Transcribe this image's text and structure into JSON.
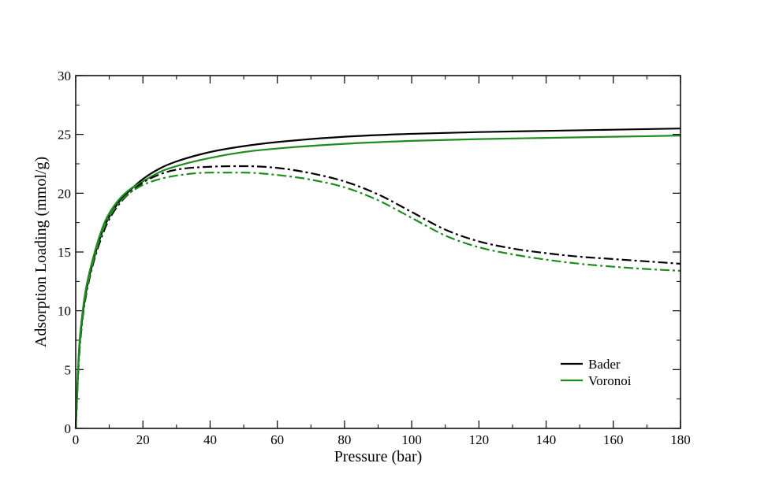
{
  "chart_data": {
    "type": "line",
    "title": "",
    "xlabel": "Pressure (bar)",
    "ylabel": "Adsorption Loading (mmol/g)",
    "xlim": [
      0,
      180
    ],
    "ylim": [
      0,
      30
    ],
    "xticks": [
      0,
      20,
      40,
      60,
      80,
      100,
      120,
      140,
      160,
      180
    ],
    "yticks": [
      0,
      5,
      10,
      15,
      20,
      25,
      30
    ],
    "grid": false,
    "legend_position": "bottom-right",
    "series": [
      {
        "name": "Bader",
        "style": "solid",
        "color": "#000000",
        "x": [
          0,
          1,
          2,
          3,
          5,
          8,
          10,
          13,
          16,
          20,
          25,
          30,
          40,
          50,
          60,
          80,
          100,
          120,
          140,
          160,
          180
        ],
        "y": [
          0,
          6.5,
          9.5,
          11.5,
          14,
          16.8,
          18.0,
          19.3,
          20.2,
          21.2,
          22.1,
          22.7,
          23.5,
          24.0,
          24.35,
          24.8,
          25.05,
          25.2,
          25.3,
          25.4,
          25.5
        ]
      },
      {
        "name": "Voronoi",
        "style": "solid",
        "color": "#1e8c1e",
        "x": [
          0,
          1,
          2,
          3,
          5,
          8,
          10,
          13,
          16,
          20,
          25,
          30,
          40,
          50,
          60,
          80,
          100,
          120,
          140,
          160,
          180
        ],
        "y": [
          0,
          6.8,
          9.8,
          11.8,
          14.3,
          17.1,
          18.3,
          19.5,
          20.3,
          21.0,
          21.8,
          22.3,
          23.0,
          23.5,
          23.8,
          24.2,
          24.45,
          24.6,
          24.7,
          24.8,
          24.9
        ]
      },
      {
        "name": "",
        "style": "dashdot",
        "color": "#000000",
        "x": [
          0,
          1,
          2,
          3,
          5,
          8,
          10,
          13,
          16,
          20,
          25,
          30,
          40,
          50,
          60,
          70,
          80,
          90,
          100,
          110,
          120,
          130,
          140,
          150,
          160,
          170,
          180
        ],
        "y": [
          0,
          6.0,
          9.2,
          11.2,
          13.8,
          16.5,
          17.8,
          19.1,
          20.0,
          20.9,
          21.6,
          22.0,
          22.25,
          22.3,
          22.15,
          21.7,
          21.0,
          19.9,
          18.4,
          16.9,
          15.9,
          15.3,
          14.9,
          14.6,
          14.4,
          14.2,
          14.0
        ]
      },
      {
        "name": "",
        "style": "dashdot",
        "color": "#1e8c1e",
        "x": [
          0,
          1,
          2,
          3,
          5,
          8,
          10,
          13,
          16,
          20,
          25,
          30,
          40,
          50,
          60,
          70,
          80,
          90,
          100,
          110,
          120,
          130,
          140,
          150,
          160,
          170,
          180
        ],
        "y": [
          0,
          6.2,
          9.4,
          11.4,
          14.0,
          16.8,
          18.0,
          19.2,
          20.0,
          20.7,
          21.2,
          21.5,
          21.75,
          21.75,
          21.55,
          21.15,
          20.5,
          19.4,
          17.9,
          16.4,
          15.4,
          14.8,
          14.35,
          14.0,
          13.75,
          13.55,
          13.4
        ]
      }
    ],
    "legend": [
      {
        "label": "Bader",
        "color": "#000000"
      },
      {
        "label": "Voronoi",
        "color": "#1e8c1e"
      }
    ]
  }
}
